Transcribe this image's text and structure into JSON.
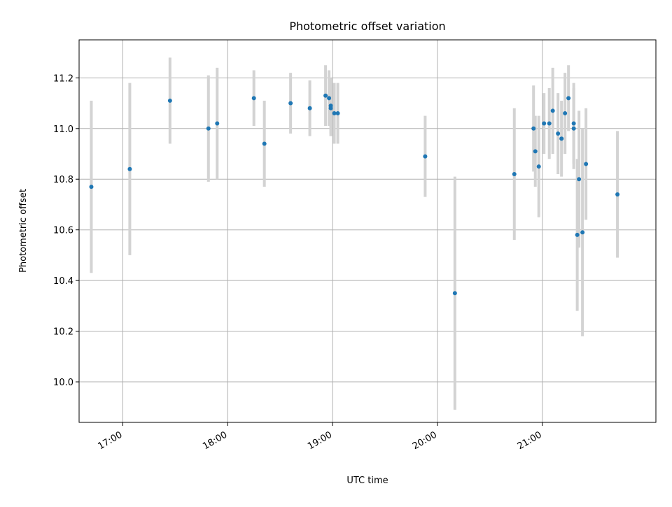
{
  "chart_data": {
    "type": "scatter",
    "title": "Photometric offset variation",
    "xlabel": "UTC time",
    "ylabel": "Photometric offset",
    "x_ticks": [
      "17:00",
      "18:00",
      "19:00",
      "20:00",
      "21:00"
    ],
    "xlim": [
      "16:35",
      "22:05"
    ],
    "ylim": [
      9.84,
      11.35
    ],
    "y_ticks": [
      "10.0",
      "10.2",
      "10.4",
      "10.6",
      "10.8",
      "11.0",
      "11.2"
    ],
    "grid": true,
    "colors": {
      "point": "#1f77b4",
      "errorbar": "#d3d3d3"
    },
    "points": [
      {
        "t": "16:42",
        "y": 10.77,
        "err": 0.34
      },
      {
        "t": "17:04",
        "y": 10.84,
        "err": 0.34
      },
      {
        "t": "17:27",
        "y": 11.11,
        "err": 0.17
      },
      {
        "t": "17:49",
        "y": 11.0,
        "err": 0.21
      },
      {
        "t": "17:54",
        "y": 11.02,
        "err": 0.22
      },
      {
        "t": "18:15",
        "y": 11.12,
        "err": 0.11
      },
      {
        "t": "18:21",
        "y": 10.94,
        "err": 0.17
      },
      {
        "t": "18:36",
        "y": 11.1,
        "err": 0.12
      },
      {
        "t": "18:47",
        "y": 11.08,
        "err": 0.11
      },
      {
        "t": "18:56",
        "y": 11.13,
        "err": 0.12
      },
      {
        "t": "18:58",
        "y": 11.12,
        "err": 0.11
      },
      {
        "t": "18:59",
        "y": 11.08,
        "err": 0.11
      },
      {
        "t": "18:59",
        "y": 11.09,
        "err": 0.11
      },
      {
        "t": "19:01",
        "y": 11.06,
        "err": 0.12
      },
      {
        "t": "19:03",
        "y": 11.06,
        "err": 0.12
      },
      {
        "t": "19:53",
        "y": 10.89,
        "err": 0.16
      },
      {
        "t": "20:10",
        "y": 10.35,
        "err": 0.46
      },
      {
        "t": "20:44",
        "y": 10.82,
        "err": 0.26
      },
      {
        "t": "20:55",
        "y": 11.0,
        "err": 0.17
      },
      {
        "t": "20:56",
        "y": 10.91,
        "err": 0.14
      },
      {
        "t": "20:58",
        "y": 10.85,
        "err": 0.2
      },
      {
        "t": "21:01",
        "y": 11.02,
        "err": 0.12
      },
      {
        "t": "21:04",
        "y": 11.02,
        "err": 0.14
      },
      {
        "t": "21:06",
        "y": 11.07,
        "err": 0.17
      },
      {
        "t": "21:09",
        "y": 10.98,
        "err": 0.16
      },
      {
        "t": "21:11",
        "y": 10.96,
        "err": 0.15
      },
      {
        "t": "21:13",
        "y": 11.06,
        "err": 0.16
      },
      {
        "t": "21:15",
        "y": 11.12,
        "err": 0.13
      },
      {
        "t": "21:18",
        "y": 11.0,
        "err": 0.16
      },
      {
        "t": "21:18",
        "y": 11.02,
        "err": 0.16
      },
      {
        "t": "21:20",
        "y": 10.58,
        "err": 0.3
      },
      {
        "t": "21:21",
        "y": 10.8,
        "err": 0.27
      },
      {
        "t": "21:23",
        "y": 10.59,
        "err": 0.41
      },
      {
        "t": "21:25",
        "y": 10.86,
        "err": 0.22
      },
      {
        "t": "21:43",
        "y": 10.74,
        "err": 0.25
      }
    ]
  }
}
